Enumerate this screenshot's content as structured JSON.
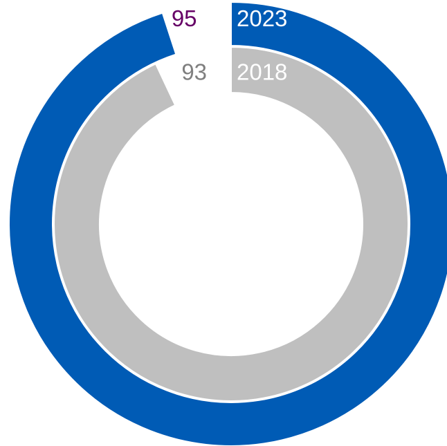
{
  "chart_data": {
    "type": "radial_bar",
    "ylim": [
      0,
      100
    ],
    "series": [
      {
        "name": "2023",
        "color": "#005bb5",
        "label_color": "#660066",
        "value": 95
      },
      {
        "name": "2018",
        "color": "#bfbfbf",
        "label_color": "#7f7f7f",
        "value": 93
      }
    ]
  }
}
